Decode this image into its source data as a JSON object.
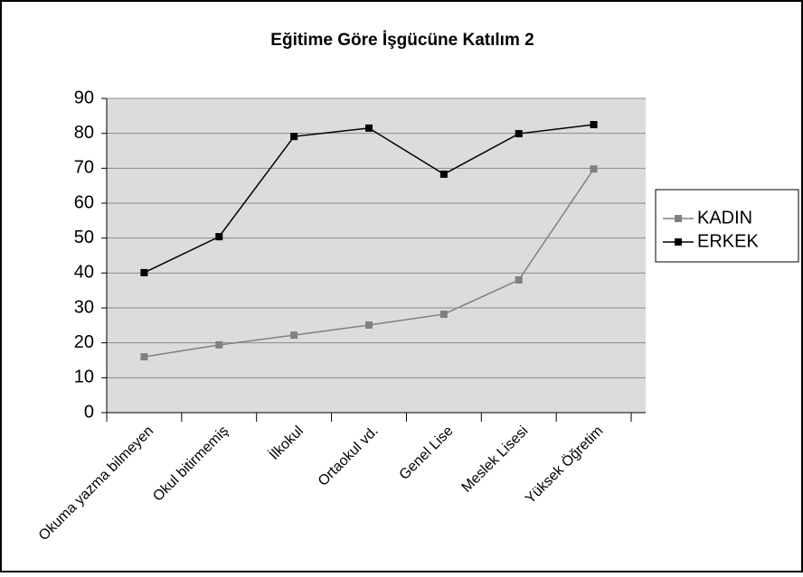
{
  "chart_data": {
    "type": "line",
    "title": "Eğitime Göre İşgücüne Katılım 2",
    "categories": [
      "Okuma yazma bilmeyen",
      "Okul bitirmemiş",
      "İlkokul",
      "Ortaokul vd.",
      "Genel Lise",
      "Meslek Lisesi",
      "Yüksek Öğretim"
    ],
    "series": [
      {
        "name": "KADIN",
        "color": "#808080",
        "values": [
          16.0,
          19.4,
          22.2,
          25.1,
          28.2,
          38.0,
          69.8
        ]
      },
      {
        "name": "ERKEK",
        "color": "#000000",
        "values": [
          40.1,
          50.4,
          79.1,
          81.5,
          68.3,
          79.9,
          82.5
        ]
      }
    ],
    "ylim": [
      0,
      90
    ],
    "yticks": [
      0,
      10,
      20,
      30,
      40,
      50,
      60,
      70,
      80,
      90
    ],
    "grid": true,
    "legend": "right"
  }
}
